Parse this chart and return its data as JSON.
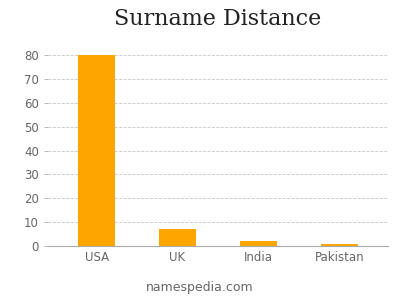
{
  "title": "Surname Distance",
  "categories": [
    "USA",
    "UK",
    "India",
    "Pakistan"
  ],
  "values": [
    80,
    7,
    2,
    1
  ],
  "bar_color": "#FFA500",
  "bar_edge_color": "#FFA500",
  "background_color": "#ffffff",
  "plot_bg_color": "#ffffff",
  "grid_color": "#bbbbbb",
  "ylim": [
    0,
    88
  ],
  "yticks": [
    0,
    10,
    20,
    30,
    40,
    50,
    60,
    70,
    80
  ],
  "footer_text": "namespedia.com",
  "title_fontsize": 16,
  "tick_fontsize": 8.5,
  "footer_fontsize": 9,
  "bar_width": 0.45
}
